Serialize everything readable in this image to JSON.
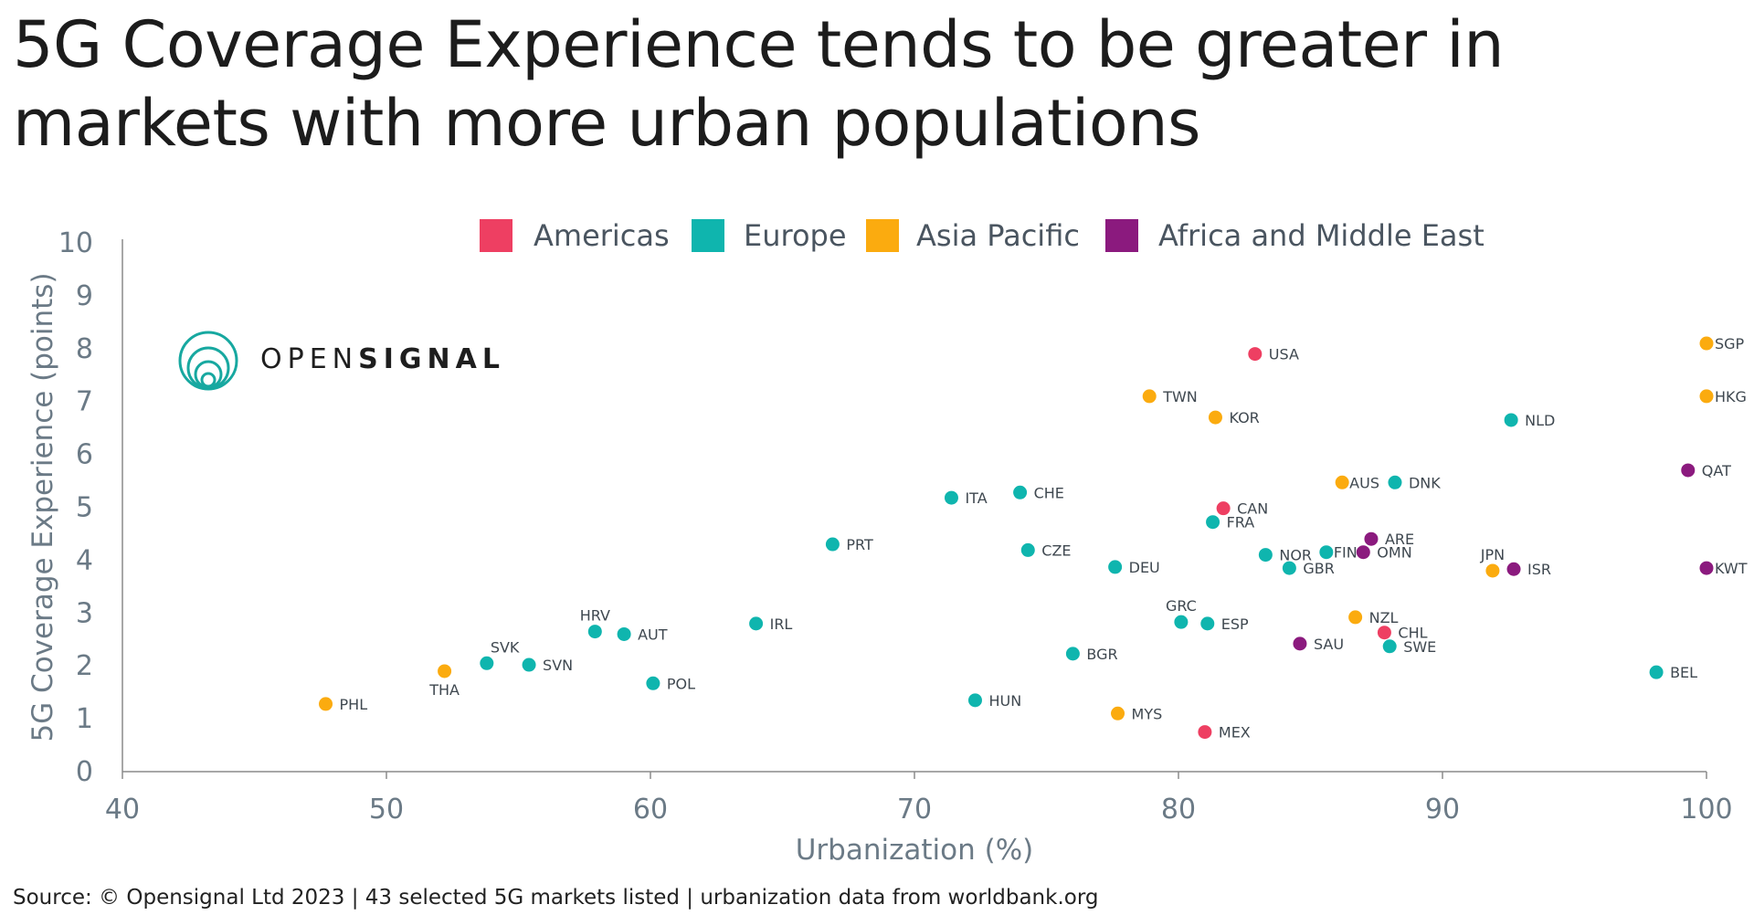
{
  "title": "5G Coverage Experience tends to be greater in markets with more urban populations",
  "source": "Source: © Opensignal Ltd 2023 | 43 selected 5G markets listed | urbanization data from worldbank.org",
  "logo": {
    "brand_light": "OPEN",
    "brand_bold": "SIGNAL",
    "icon": "opensignal-circles-icon"
  },
  "chart_data": {
    "type": "scatter",
    "xlabel": "Urbanization (%)",
    "ylabel": "5G Coverage Experience (points)",
    "xlim": [
      40,
      100
    ],
    "ylim": [
      0,
      10
    ],
    "xticks": [
      40,
      50,
      60,
      70,
      80,
      90,
      100
    ],
    "yticks": [
      0,
      1,
      2,
      3,
      4,
      5,
      6,
      7,
      8,
      9,
      10
    ],
    "grid": false,
    "legend_position": "top",
    "groups": [
      {
        "name": "Americas",
        "color": "#EE3F62"
      },
      {
        "name": "Europe",
        "color": "#0FB5AE"
      },
      {
        "name": "Asia Pacific",
        "color": "#FBAB0F"
      },
      {
        "name": "Africa and Middle East",
        "color": "#8B1A7E"
      }
    ],
    "points": [
      {
        "label": "USA",
        "group": "Americas",
        "x": 82.9,
        "y": 7.9
      },
      {
        "label": "CAN",
        "group": "Americas",
        "x": 81.7,
        "y": 4.98
      },
      {
        "label": "CHL",
        "group": "Americas",
        "x": 87.8,
        "y": 2.63
      },
      {
        "label": "MEX",
        "group": "Americas",
        "x": 81.0,
        "y": 0.75
      },
      {
        "label": "NLD",
        "group": "Europe",
        "x": 92.6,
        "y": 6.65
      },
      {
        "label": "DNK",
        "group": "Europe",
        "x": 88.2,
        "y": 5.47
      },
      {
        "label": "ITA",
        "group": "Europe",
        "x": 71.4,
        "y": 5.18
      },
      {
        "label": "CHE",
        "group": "Europe",
        "x": 74.0,
        "y": 5.28
      },
      {
        "label": "FRA",
        "group": "Europe",
        "x": 81.3,
        "y": 4.72
      },
      {
        "label": "PRT",
        "group": "Europe",
        "x": 66.9,
        "y": 4.3
      },
      {
        "label": "CZE",
        "group": "Europe",
        "x": 74.3,
        "y": 4.19
      },
      {
        "label": "NOR",
        "group": "Europe",
        "x": 83.3,
        "y": 4.1
      },
      {
        "label": "FIN",
        "group": "Europe",
        "x": 85.6,
        "y": 4.15
      },
      {
        "label": "GBR",
        "group": "Europe",
        "x": 84.2,
        "y": 3.85
      },
      {
        "label": "DEU",
        "group": "Europe",
        "x": 77.6,
        "y": 3.87
      },
      {
        "label": "GRC",
        "group": "Europe",
        "x": 80.1,
        "y": 2.83
      },
      {
        "label": "ESP",
        "group": "Europe",
        "x": 81.1,
        "y": 2.8
      },
      {
        "label": "SWE",
        "group": "Europe",
        "x": 88.0,
        "y": 2.37
      },
      {
        "label": "BGR",
        "group": "Europe",
        "x": 76.0,
        "y": 2.23
      },
      {
        "label": "HRV",
        "group": "Europe",
        "x": 57.9,
        "y": 2.65
      },
      {
        "label": "AUT",
        "group": "Europe",
        "x": 59.0,
        "y": 2.6
      },
      {
        "label": "IRL",
        "group": "Europe",
        "x": 64.0,
        "y": 2.8
      },
      {
        "label": "SVK",
        "group": "Europe",
        "x": 53.8,
        "y": 2.05
      },
      {
        "label": "SVN",
        "group": "Europe",
        "x": 55.4,
        "y": 2.02
      },
      {
        "label": "POL",
        "group": "Europe",
        "x": 60.1,
        "y": 1.67
      },
      {
        "label": "HUN",
        "group": "Europe",
        "x": 72.3,
        "y": 1.35
      },
      {
        "label": "BEL",
        "group": "Europe",
        "x": 98.1,
        "y": 1.88
      },
      {
        "label": "SGP",
        "group": "Asia Pacific",
        "x": 100.0,
        "y": 8.1
      },
      {
        "label": "HKG",
        "group": "Asia Pacific",
        "x": 100.0,
        "y": 7.1
      },
      {
        "label": "TWN",
        "group": "Asia Pacific",
        "x": 78.9,
        "y": 7.1
      },
      {
        "label": "KOR",
        "group": "Asia Pacific",
        "x": 81.4,
        "y": 6.7
      },
      {
        "label": "AUS",
        "group": "Asia Pacific",
        "x": 86.2,
        "y": 5.47
      },
      {
        "label": "JPN",
        "group": "Asia Pacific",
        "x": 91.9,
        "y": 3.8
      },
      {
        "label": "NZL",
        "group": "Asia Pacific",
        "x": 86.7,
        "y": 2.92
      },
      {
        "label": "THA",
        "group": "Asia Pacific",
        "x": 52.2,
        "y": 1.9
      },
      {
        "label": "PHL",
        "group": "Asia Pacific",
        "x": 47.7,
        "y": 1.28
      },
      {
        "label": "MYS",
        "group": "Asia Pacific",
        "x": 77.7,
        "y": 1.1
      },
      {
        "label": "QAT",
        "group": "Africa and Middle East",
        "x": 99.3,
        "y": 5.7
      },
      {
        "label": "ARE",
        "group": "Africa and Middle East",
        "x": 87.3,
        "y": 4.4
      },
      {
        "label": "OMN",
        "group": "Africa and Middle East",
        "x": 87.0,
        "y": 4.15
      },
      {
        "label": "ISR",
        "group": "Africa and Middle East",
        "x": 92.7,
        "y": 3.83
      },
      {
        "label": "KWT",
        "group": "Africa and Middle East",
        "x": 100.0,
        "y": 3.85
      },
      {
        "label": "SAU",
        "group": "Africa and Middle East",
        "x": 84.6,
        "y": 2.42
      }
    ]
  }
}
